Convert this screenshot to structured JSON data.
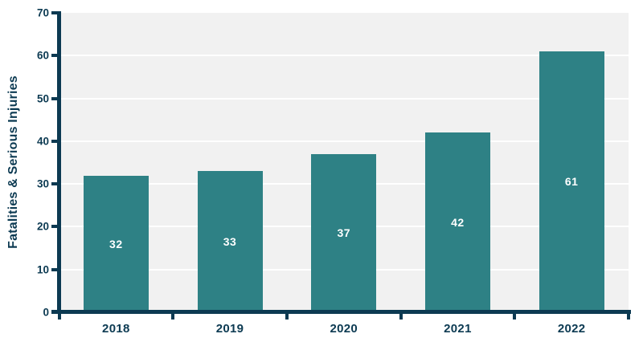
{
  "chart_data": {
    "type": "bar",
    "title": "",
    "categories": [
      "2018",
      "2019",
      "2020",
      "2021",
      "2022"
    ],
    "values": [
      32,
      33,
      37,
      42,
      61
    ],
    "xlabel": "",
    "ylabel": "Fatalities & Serious Injuries",
    "ylim": [
      0,
      70
    ],
    "ytick_interval": 10,
    "grid": true,
    "legend": false,
    "bar_value_labels_shown": true,
    "colors": {
      "bar": "#2E8185",
      "axis": "#0C3A52",
      "tick_label": "#0C3A52",
      "plot_background": "#F1F1F1",
      "gridline": "#FFFFFF",
      "bar_label_text": "#FFFFFF",
      "page_background": "#FFFFFF"
    }
  }
}
